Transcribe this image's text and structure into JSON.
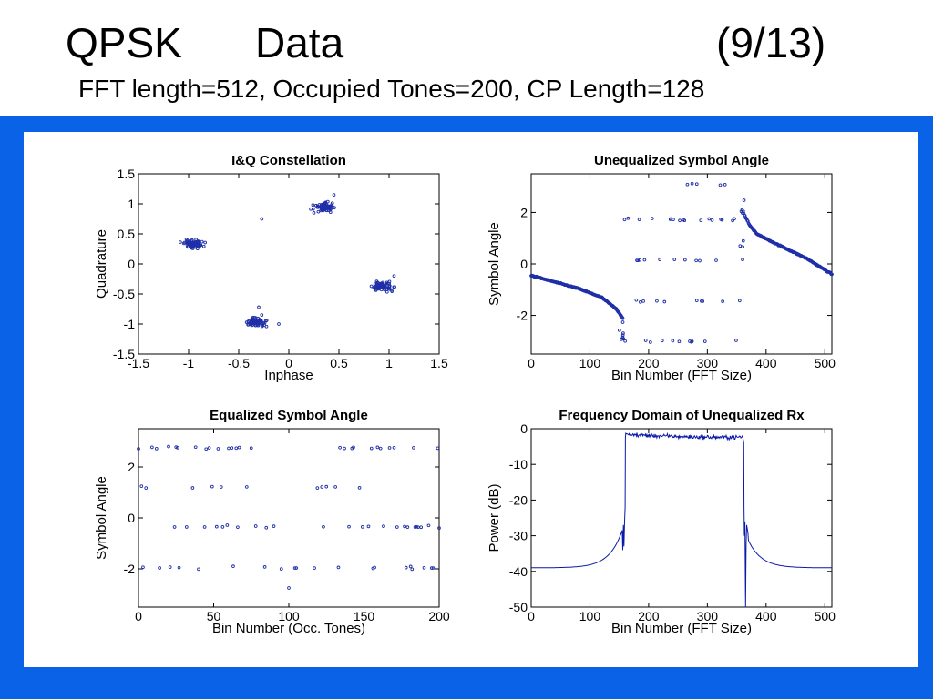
{
  "slide": {
    "title_left": "QPSK",
    "title_mid": "Data",
    "title_right": "(9/13)",
    "subtitle": "FFT length=512, Occupied Tones=200, CP Length=128"
  },
  "colors": {
    "panel_blue": "#0a62e6",
    "marker_blue": "#1f2fa8",
    "line_blue": "#0a19a8"
  },
  "chart_data": [
    {
      "type": "scatter",
      "title": "I&Q Constellation",
      "xlabel": "Inphase",
      "ylabel": "Quadrature",
      "xlim": [
        -1.5,
        1.5
      ],
      "ylim": [
        -1.5,
        1.5
      ],
      "xticks": [
        -1.5,
        -1,
        -0.5,
        0,
        0.5,
        1,
        1.5
      ],
      "yticks": [
        -1.5,
        -1,
        -0.5,
        0,
        0.5,
        1,
        1.5
      ],
      "xtick_labels": [
        "-1.5",
        "-1",
        "-0.5",
        "0",
        "0.5",
        "1",
        "1.5"
      ],
      "ytick_labels": [
        "-1.5",
        "-1",
        "-0.5",
        "0",
        "0.5",
        "1",
        "1.5"
      ],
      "clusters": [
        {
          "center": [
            -0.95,
            0.33
          ],
          "spread": 0.1
        },
        {
          "center": [
            0.35,
            0.95
          ],
          "spread": 0.1
        },
        {
          "center": [
            0.95,
            -0.38
          ],
          "spread": 0.1
        },
        {
          "center": [
            -0.33,
            -0.97
          ],
          "spread": 0.1
        }
      ],
      "points": [
        [
          -0.27,
          0.75
        ],
        [
          -0.3,
          -0.72
        ],
        [
          -0.27,
          -0.85
        ],
        [
          0.45,
          1.15
        ],
        [
          -0.1,
          -1.0
        ],
        [
          0.85,
          -0.4
        ],
        [
          1.05,
          -0.2
        ],
        [
          0.25,
          0.85
        ]
      ]
    },
    {
      "type": "scatter",
      "title": "Unequalized Symbol Angle",
      "xlabel": "Bin Number (FFT Size)",
      "ylabel": "Symbol Angle",
      "xlim": [
        0,
        512
      ],
      "ylim": [
        -3.5,
        3.5
      ],
      "xticks": [
        0,
        100,
        200,
        300,
        400,
        500
      ],
      "yticks": [
        -2,
        0,
        2
      ],
      "xtick_labels": [
        "0",
        "100",
        "200",
        "300",
        "400",
        "500"
      ],
      "ytick_labels": [
        "-2",
        "0",
        "2"
      ],
      "occupied_band": [
        156,
        356
      ],
      "phase_levels": [
        1.72,
        0.15,
        -1.45,
        -3.0
      ],
      "wrap_level": 3.1,
      "left_slope_curve": [
        [
          0,
          -0.45
        ],
        [
          40,
          -0.7
        ],
        [
          80,
          -0.95
        ],
        [
          120,
          -1.3
        ],
        [
          145,
          -1.75
        ],
        [
          156,
          -2.1
        ]
      ],
      "right_slope_curve": [
        [
          362,
          1.95
        ],
        [
          372,
          1.5
        ],
        [
          385,
          1.15
        ],
        [
          420,
          0.75
        ],
        [
          470,
          0.2
        ],
        [
          512,
          -0.4
        ]
      ]
    },
    {
      "type": "scatter",
      "title": "Equalized Symbol Angle",
      "xlabel": "Bin Number (Occ. Tones)",
      "ylabel": "Symbol Angle",
      "xlim": [
        0,
        200
      ],
      "ylim": [
        -3.5,
        3.5
      ],
      "xticks": [
        0,
        50,
        100,
        150,
        200
      ],
      "yticks": [
        -2,
        0,
        2
      ],
      "xtick_labels": [
        "0",
        "50",
        "100",
        "150",
        "200"
      ],
      "ytick_labels": [
        "-2",
        "0",
        "2"
      ],
      "phase_levels": [
        2.75,
        1.2,
        -0.35,
        -1.95
      ],
      "outliers": [
        [
          100,
          -2.75
        ]
      ]
    },
    {
      "type": "line",
      "title": "Frequency Domain of Unequalized Rx",
      "xlabel": "Bin Number (FFT Size)",
      "ylabel": "Power (dB)",
      "xlim": [
        0,
        512
      ],
      "ylim": [
        -50,
        0
      ],
      "xticks": [
        0,
        100,
        200,
        300,
        400,
        500
      ],
      "yticks": [
        -50,
        -40,
        -30,
        -20,
        -10,
        0
      ],
      "xtick_labels": [
        "0",
        "100",
        "200",
        "300",
        "400",
        "500"
      ],
      "ytick_labels": [
        "-50",
        "-40",
        "-30",
        "-20",
        "-10",
        "0"
      ],
      "floor_db": -39,
      "skirt_points": [
        [
          0,
          -39
        ],
        [
          50,
          -38.7
        ],
        [
          100,
          -37.3
        ],
        [
          130,
          -35
        ],
        [
          150,
          -30
        ],
        [
          155,
          -28
        ]
      ],
      "passband_db_range": [
        -3.5,
        -0.5
      ],
      "band_edges": [
        156,
        362
      ],
      "notch_db": -50
    }
  ]
}
